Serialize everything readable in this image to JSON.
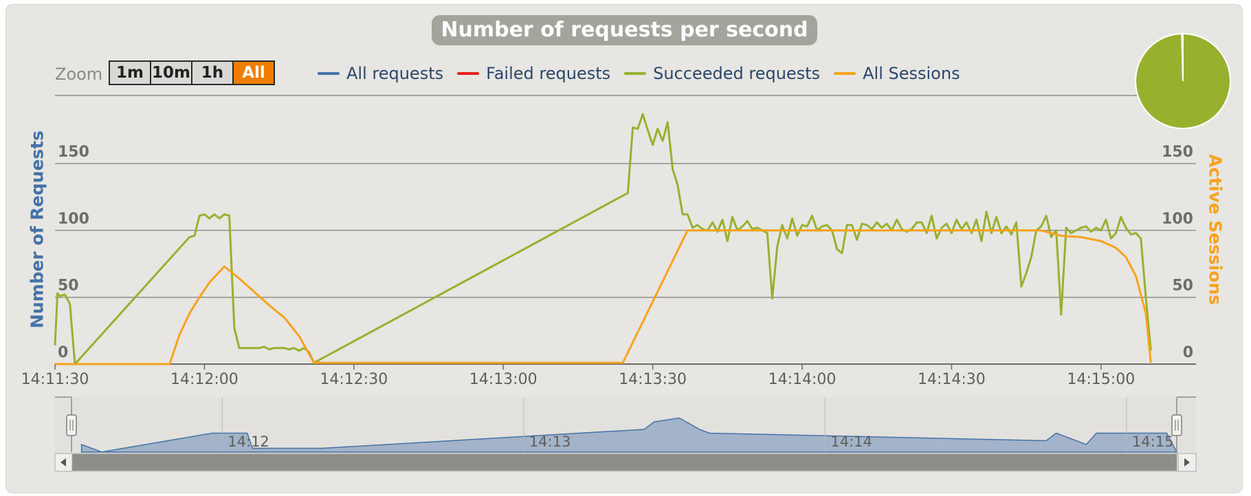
{
  "title": "Number of requests per second",
  "zoom": {
    "label": "Zoom",
    "buttons": [
      "1m",
      "10m",
      "1h",
      "All"
    ],
    "selected": "All"
  },
  "legend": [
    {
      "name": "All requests",
      "color": "#4572a7"
    },
    {
      "name": "Failed requests",
      "color": "#e8201c"
    },
    {
      "name": "Succeeded requests",
      "color": "#97b12f"
    },
    {
      "name": "All Sessions",
      "color": "#f7a21d"
    }
  ],
  "chart_data": {
    "type": "line",
    "title": "Number of requests per second",
    "xlabel": "",
    "ylabel": "Number of Requests",
    "ylabel_right": "Active Sessions",
    "x_ticks": [
      "14:11:30",
      "14:12:00",
      "14:12:30",
      "14:13:00",
      "14:13:30",
      "14:14:00",
      "14:14:30",
      "14:15:00"
    ],
    "y_ticks": [
      0,
      50,
      100,
      150
    ],
    "y_right_ticks": [
      0,
      50,
      100,
      150
    ],
    "ylim": [
      0,
      150
    ],
    "grid": true,
    "legend_position": "top",
    "series": [
      {
        "name": "Succeeded requests",
        "color": "#97b12f",
        "points": [
          [
            "14:11:30",
            14
          ],
          [
            "14:11:30.5",
            53
          ],
          [
            "14:11:31",
            51
          ],
          [
            "14:11:32",
            52
          ],
          [
            "14:11:33",
            45
          ],
          [
            "14:11:34",
            0
          ],
          [
            "14:11:57",
            95
          ],
          [
            "14:11:58",
            96
          ],
          [
            "14:11:59",
            111
          ],
          [
            "14:12:00",
            112
          ],
          [
            "14:12:01",
            109
          ],
          [
            "14:12:02",
            112
          ],
          [
            "14:12:03",
            109
          ],
          [
            "14:12:04",
            112
          ],
          [
            "14:12:05",
            111
          ],
          [
            "14:12:06",
            27
          ],
          [
            "14:12:07",
            12
          ],
          [
            "14:12:08",
            12
          ],
          [
            "14:12:09",
            12
          ],
          [
            "14:12:10",
            12
          ],
          [
            "14:12:11",
            12
          ],
          [
            "14:12:12",
            13
          ],
          [
            "14:12:13",
            11
          ],
          [
            "14:12:14",
            12
          ],
          [
            "14:12:15",
            12
          ],
          [
            "14:12:16",
            12
          ],
          [
            "14:12:17",
            11
          ],
          [
            "14:12:18",
            12
          ],
          [
            "14:12:19",
            10
          ],
          [
            "14:12:20",
            12
          ],
          [
            "14:12:21",
            9
          ],
          [
            "14:12:22",
            1
          ],
          [
            "14:13:25",
            128
          ],
          [
            "14:13:26",
            177
          ],
          [
            "14:13:27",
            176
          ],
          [
            "14:13:28",
            187
          ],
          [
            "14:13:29",
            175
          ],
          [
            "14:13:30",
            164
          ],
          [
            "14:13:31",
            176
          ],
          [
            "14:13:32",
            167
          ],
          [
            "14:13:33",
            181
          ],
          [
            "14:13:34",
            146
          ],
          [
            "14:13:35",
            134
          ],
          [
            "14:13:36",
            112
          ],
          [
            "14:13:37",
            112
          ],
          [
            "14:13:38",
            102
          ],
          [
            "14:13:39",
            104
          ],
          [
            "14:13:40",
            101
          ],
          [
            "14:13:41",
            100
          ],
          [
            "14:13:42",
            106
          ],
          [
            "14:13:43",
            99
          ],
          [
            "14:13:44",
            108
          ],
          [
            "14:13:45",
            92
          ],
          [
            "14:13:46",
            110
          ],
          [
            "14:13:47",
            100
          ],
          [
            "14:13:48",
            103
          ],
          [
            "14:13:49",
            107
          ],
          [
            "14:13:50",
            101
          ],
          [
            "14:13:51",
            102
          ],
          [
            "14:13:52",
            100
          ],
          [
            "14:13:53",
            98
          ],
          [
            "14:13:54",
            49
          ],
          [
            "14:13:55",
            88
          ],
          [
            "14:13:56",
            104
          ],
          [
            "14:13:57",
            94
          ],
          [
            "14:13:58",
            109
          ],
          [
            "14:13:59",
            96
          ],
          [
            "14:14:00",
            104
          ],
          [
            "14:14:01",
            103
          ],
          [
            "14:14:02",
            111
          ],
          [
            "14:14:03",
            100
          ],
          [
            "14:14:04",
            103
          ],
          [
            "14:14:05",
            104
          ],
          [
            "14:14:06",
            100
          ],
          [
            "14:14:07",
            86
          ],
          [
            "14:14:08",
            83
          ],
          [
            "14:14:09",
            104
          ],
          [
            "14:14:10",
            104
          ],
          [
            "14:14:11",
            93
          ],
          [
            "14:14:12",
            105
          ],
          [
            "14:14:13",
            104
          ],
          [
            "14:14:14",
            101
          ],
          [
            "14:14:15",
            106
          ],
          [
            "14:14:16",
            102
          ],
          [
            "14:14:17",
            105
          ],
          [
            "14:14:18",
            100
          ],
          [
            "14:14:19",
            108
          ],
          [
            "14:14:20",
            101
          ],
          [
            "14:14:21",
            99
          ],
          [
            "14:14:22",
            101
          ],
          [
            "14:14:23",
            106
          ],
          [
            "14:14:24",
            106
          ],
          [
            "14:14:25",
            98
          ],
          [
            "14:14:26",
            111
          ],
          [
            "14:14:27",
            94
          ],
          [
            "14:14:28",
            102
          ],
          [
            "14:14:29",
            105
          ],
          [
            "14:14:30",
            98
          ],
          [
            "14:14:31",
            108
          ],
          [
            "14:14:32",
            101
          ],
          [
            "14:14:33",
            106
          ],
          [
            "14:14:34",
            98
          ],
          [
            "14:14:35",
            108
          ],
          [
            "14:14:36",
            92
          ],
          [
            "14:14:37",
            114
          ],
          [
            "14:14:38",
            98
          ],
          [
            "14:14:39",
            110
          ],
          [
            "14:14:40",
            98
          ],
          [
            "14:14:41",
            103
          ],
          [
            "14:14:42",
            97
          ],
          [
            "14:14:43",
            106
          ],
          [
            "14:14:44",
            58
          ],
          [
            "14:14:45",
            68
          ],
          [
            "14:14:46",
            80
          ],
          [
            "14:14:47",
            100
          ],
          [
            "14:14:48",
            103
          ],
          [
            "14:14:49",
            111
          ],
          [
            "14:14:50",
            95
          ],
          [
            "14:14:51",
            100
          ],
          [
            "14:14:52",
            37
          ],
          [
            "14:14:53",
            102
          ],
          [
            "14:14:54",
            98
          ],
          [
            "14:14:55",
            100
          ],
          [
            "14:14:56",
            102
          ],
          [
            "14:14:57",
            103
          ],
          [
            "14:14:58",
            99
          ],
          [
            "14:14:59",
            102
          ],
          [
            "14:15:00",
            100
          ],
          [
            "14:15:01",
            108
          ],
          [
            "14:15:02",
            94
          ],
          [
            "14:15:03",
            98
          ],
          [
            "14:15:04",
            110
          ],
          [
            "14:15:05",
            102
          ],
          [
            "14:15:06",
            97
          ],
          [
            "14:15:07",
            98
          ],
          [
            "14:15:08",
            94
          ],
          [
            "14:15:09",
            50
          ],
          [
            "14:15:10",
            10
          ]
        ]
      },
      {
        "name": "All Sessions",
        "color": "#f7a21d",
        "points": [
          [
            "14:11:30",
            0
          ],
          [
            "14:11:53",
            0
          ],
          [
            "14:11:55",
            22
          ],
          [
            "14:11:57",
            38
          ],
          [
            "14:11:59",
            50
          ],
          [
            "14:12:01",
            61
          ],
          [
            "14:12:04",
            73
          ],
          [
            "14:12:07",
            64
          ],
          [
            "14:12:10",
            54
          ],
          [
            "14:12:13",
            44
          ],
          [
            "14:12:16",
            35
          ],
          [
            "14:12:19",
            21
          ],
          [
            "14:12:22",
            1
          ],
          [
            "14:13:24",
            1
          ],
          [
            "14:13:37",
            100
          ],
          [
            "14:14:48",
            100
          ],
          [
            "14:14:52",
            96
          ],
          [
            "14:14:56",
            95
          ],
          [
            "14:15:00",
            92
          ],
          [
            "14:15:03",
            87
          ],
          [
            "14:15:05",
            80
          ],
          [
            "14:15:07",
            66
          ],
          [
            "14:15:09",
            38
          ],
          [
            "14:15:10",
            1
          ]
        ]
      },
      {
        "name": "All requests",
        "color": "#4572a7",
        "points": []
      },
      {
        "name": "Failed requests",
        "color": "#e8201c",
        "points": []
      }
    ],
    "pie": {
      "Succeeded requests": 99.6,
      "Failed requests": 0.4
    },
    "navigator": {
      "labels": [
        "14:12",
        "14:13",
        "14:14",
        "14:15"
      ],
      "series": [
        [
          "14:11:32",
          2
        ],
        [
          "14:11:34",
          1
        ],
        [
          "14:11:36",
          0
        ],
        [
          "14:11:58",
          5
        ],
        [
          "14:12:05",
          5
        ],
        [
          "14:12:06",
          1
        ],
        [
          "14:12:20",
          1
        ],
        [
          "14:13:24",
          6
        ],
        [
          "14:13:26",
          8
        ],
        [
          "14:13:31",
          9
        ],
        [
          "14:13:35",
          6
        ],
        [
          "14:13:37",
          5
        ],
        [
          "14:14:44",
          3
        ],
        [
          "14:14:46",
          5
        ],
        [
          "14:14:52",
          2
        ],
        [
          "14:14:54",
          5
        ],
        [
          "14:15:08",
          5
        ],
        [
          "14:15:10",
          0
        ]
      ]
    }
  }
}
